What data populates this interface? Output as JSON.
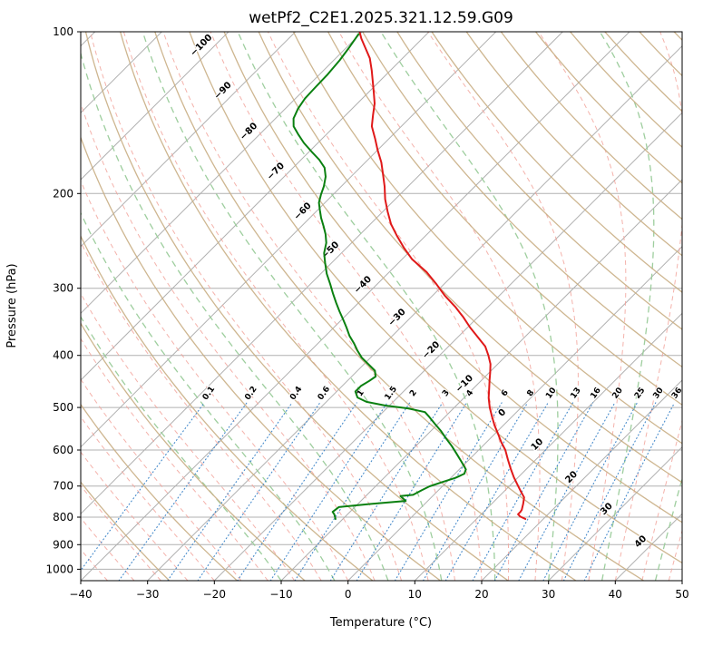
{
  "chart_data": {
    "type": "line",
    "variant": "skew-t-log-p-sounding",
    "title": "wetPf2_C2E1.2025.321.12.59.G09",
    "xlabel": "Temperature (°C)",
    "ylabel": "Pressure (hPa)",
    "xlim": [
      -40,
      50
    ],
    "plim_hpa": [
      1050,
      100
    ],
    "skew_degrees": 45,
    "grid": true,
    "x_ticks": [
      -40,
      -30,
      -20,
      -10,
      0,
      10,
      20,
      30,
      40,
      50
    ],
    "pressure_ticks": [
      100,
      200,
      300,
      400,
      500,
      600,
      700,
      800,
      900,
      1000
    ],
    "isotherms": {
      "start": -130,
      "end": 50,
      "step": 10,
      "labels": [
        {
          "value": -100,
          "y": 57
        },
        {
          "value": -90,
          "y": 107
        },
        {
          "value": -80,
          "y": 152
        },
        {
          "value": -70,
          "y": 196
        },
        {
          "value": -60,
          "y": 240
        },
        {
          "value": -50,
          "y": 283
        },
        {
          "value": -40,
          "y": 321
        },
        {
          "value": -30,
          "y": 357
        },
        {
          "value": -20,
          "y": 393
        },
        {
          "value": -10,
          "y": 430
        },
        {
          "value": 0,
          "y": 462
        },
        {
          "value": 10,
          "y": 497
        },
        {
          "value": 20,
          "y": 533
        },
        {
          "value": 30,
          "y": 568
        },
        {
          "value": 40,
          "y": 604
        }
      ]
    },
    "mixing_ratio_g_kg": [
      0.1,
      0.2,
      0.4,
      0.6,
      1,
      1.5,
      2,
      3,
      4,
      6,
      8,
      10,
      13,
      16,
      20,
      25,
      30,
      36
    ],
    "dry_adiabats_theta_k": {
      "start": 243,
      "end": 473,
      "step": 10
    },
    "moist_adiabats_t0_c": {
      "start": -64,
      "end": 48,
      "step": 4
    },
    "moist_adiabats_green_t0_c": {
      "start": -10,
      "end": 46,
      "step": 8
    },
    "series": [
      {
        "name": "temperature",
        "color": "#e01919",
        "points": [
          [
            806,
            17.3
          ],
          [
            798,
            16.2
          ],
          [
            790,
            15.5
          ],
          [
            782,
            15.5
          ],
          [
            775,
            15.4
          ],
          [
            755,
            14.7
          ],
          [
            735,
            13.9
          ],
          [
            715,
            12.4
          ],
          [
            700,
            11.3
          ],
          [
            675,
            9.4
          ],
          [
            650,
            7.6
          ],
          [
            625,
            5.8
          ],
          [
            600,
            4.0
          ],
          [
            580,
            2.2
          ],
          [
            560,
            0.5
          ],
          [
            540,
            -1.3
          ],
          [
            520,
            -3.0
          ],
          [
            500,
            -4.7
          ],
          [
            480,
            -6.3
          ],
          [
            460,
            -7.7
          ],
          [
            445,
            -8.8
          ],
          [
            430,
            -9.9
          ],
          [
            415,
            -11.1
          ],
          [
            400,
            -12.7
          ],
          [
            385,
            -14.5
          ],
          [
            370,
            -17.0
          ],
          [
            355,
            -19.6
          ],
          [
            340,
            -22.1
          ],
          [
            325,
            -24.9
          ],
          [
            310,
            -28.1
          ],
          [
            295,
            -31.1
          ],
          [
            280,
            -34.4
          ],
          [
            265,
            -38.5
          ],
          [
            252,
            -41.5
          ],
          [
            240,
            -44.2
          ],
          [
            228,
            -46.9
          ],
          [
            216,
            -49.3
          ],
          [
            205,
            -51.5
          ],
          [
            194,
            -53.5
          ],
          [
            184,
            -55.6
          ],
          [
            175,
            -57.6
          ],
          [
            166,
            -60.0
          ],
          [
            158,
            -62.1
          ],
          [
            150,
            -64.4
          ],
          [
            143,
            -65.9
          ],
          [
            136,
            -67.4
          ],
          [
            130,
            -69.1
          ],
          [
            124,
            -70.9
          ],
          [
            118,
            -72.8
          ],
          [
            112,
            -74.9
          ],
          [
            107,
            -77.2
          ],
          [
            103,
            -79.1
          ],
          [
            100,
            -80.4
          ]
        ]
      },
      {
        "name": "dewpoint",
        "color": "#0a8010",
        "points": [
          [
            806,
            -11.1
          ],
          [
            790,
            -12.0
          ],
          [
            782,
            -12.6
          ],
          [
            766,
            -12.4
          ],
          [
            756,
            -8.2
          ],
          [
            746,
            -3.3
          ],
          [
            731,
            -4.8
          ],
          [
            727,
            -3.1
          ],
          [
            713,
            -2.5
          ],
          [
            701,
            -1.9
          ],
          [
            688,
            -0.6
          ],
          [
            676,
            0.7
          ],
          [
            664,
            1.4
          ],
          [
            652,
            1.0
          ],
          [
            631,
            -0.8
          ],
          [
            610,
            -2.7
          ],
          [
            590,
            -4.6
          ],
          [
            571,
            -6.6
          ],
          [
            552,
            -8.6
          ],
          [
            536,
            -10.5
          ],
          [
            521,
            -12.3
          ],
          [
            510,
            -13.7
          ],
          [
            502,
            -16.8
          ],
          [
            496,
            -20.6
          ],
          [
            488,
            -24.0
          ],
          [
            479,
            -26.0
          ],
          [
            467,
            -27.2
          ],
          [
            456,
            -27.2
          ],
          [
            446,
            -26.7
          ],
          [
            438,
            -26.4
          ],
          [
            427,
            -27.4
          ],
          [
            415,
            -29.4
          ],
          [
            404,
            -31.3
          ],
          [
            392,
            -33.0
          ],
          [
            380,
            -34.6
          ],
          [
            368,
            -36.4
          ],
          [
            355,
            -38.1
          ],
          [
            343,
            -39.8
          ],
          [
            331,
            -41.6
          ],
          [
            319,
            -43.4
          ],
          [
            307,
            -45.2
          ],
          [
            295,
            -47.0
          ],
          [
            282,
            -49.1
          ],
          [
            269,
            -51.0
          ],
          [
            258,
            -52.6
          ],
          [
            247,
            -53.8
          ],
          [
            238,
            -55.2
          ],
          [
            230,
            -56.7
          ],
          [
            222,
            -58.3
          ],
          [
            215,
            -59.6
          ],
          [
            208,
            -60.9
          ],
          [
            201,
            -61.8
          ],
          [
            194,
            -62.6
          ],
          [
            186,
            -63.8
          ],
          [
            179,
            -65.3
          ],
          [
            173,
            -67.3
          ],
          [
            167,
            -69.7
          ],
          [
            161,
            -72.1
          ],
          [
            155,
            -74.3
          ],
          [
            150,
            -76.1
          ],
          [
            145,
            -77.3
          ],
          [
            139,
            -78.1
          ],
          [
            133,
            -78.6
          ],
          [
            127,
            -78.7
          ],
          [
            120,
            -78.8
          ],
          [
            113,
            -79.1
          ],
          [
            107,
            -79.6
          ],
          [
            101,
            -80.2
          ]
        ]
      }
    ],
    "colors": {
      "grid": "#b0b0b0",
      "isotherm": "#b0b0b0",
      "dry_adiabat": "#c9ae84",
      "moist_adiabat": "#f2a49c",
      "moist_adiabat_green": "#99cb99",
      "mixing_ratio": "#3d85c8",
      "isotherm_label_negative": "#3579b1",
      "isotherm_label_zero": "#808080",
      "isotherm_label_positive": "#c83737",
      "axis": "#000000"
    }
  }
}
